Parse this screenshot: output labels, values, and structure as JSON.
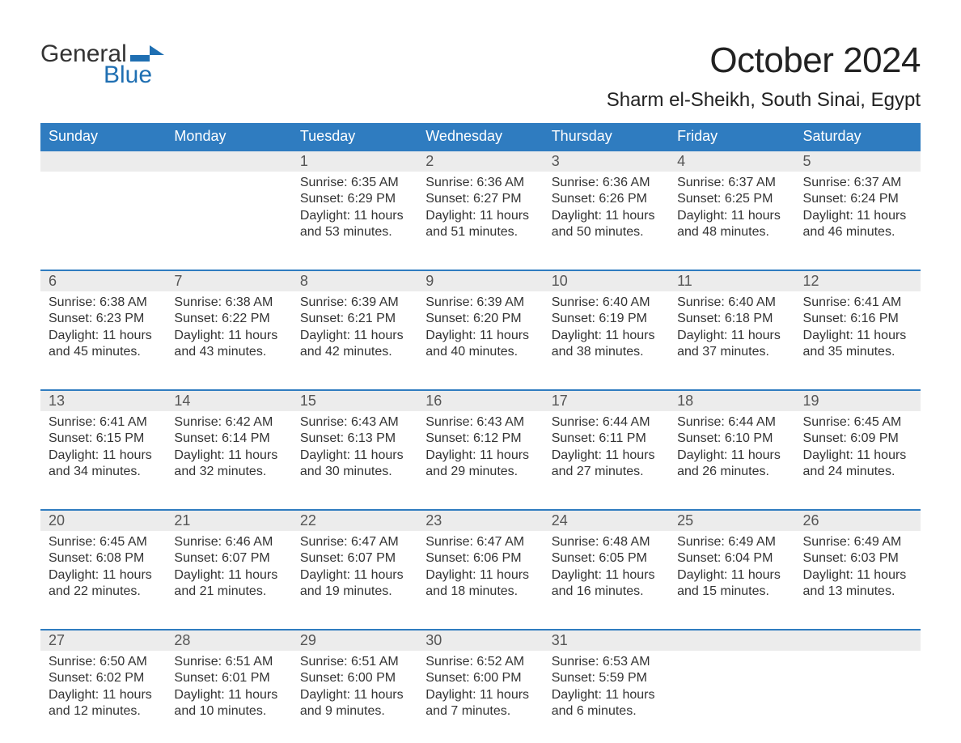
{
  "brand": {
    "word1": "General",
    "word2": "Blue",
    "mark_color": "#1f6fb2",
    "text_color_primary": "#333333",
    "text_color_accent": "#1f6fb2"
  },
  "header": {
    "month_title": "October 2024",
    "location": "Sharm el-Sheikh, South Sinai, Egypt"
  },
  "style": {
    "header_bg": "#2f7cc0",
    "header_fg": "#ffffff",
    "daynum_bg": "#ececec",
    "daynum_fg": "#555555",
    "row_border": "#2f7cc0",
    "body_fg": "#333333",
    "page_bg": "#ffffff",
    "month_title_fontsize": 44,
    "location_fontsize": 24,
    "weekday_fontsize": 18,
    "daynum_fontsize": 18,
    "body_fontsize": 16
  },
  "weekdays": [
    "Sunday",
    "Monday",
    "Tuesday",
    "Wednesday",
    "Thursday",
    "Friday",
    "Saturday"
  ],
  "weeks": [
    [
      {
        "empty": true
      },
      {
        "empty": true
      },
      {
        "num": "1",
        "sunrise": "Sunrise: 6:35 AM",
        "sunset": "Sunset: 6:29 PM",
        "daylight": "Daylight: 11 hours and 53 minutes."
      },
      {
        "num": "2",
        "sunrise": "Sunrise: 6:36 AM",
        "sunset": "Sunset: 6:27 PM",
        "daylight": "Daylight: 11 hours and 51 minutes."
      },
      {
        "num": "3",
        "sunrise": "Sunrise: 6:36 AM",
        "sunset": "Sunset: 6:26 PM",
        "daylight": "Daylight: 11 hours and 50 minutes."
      },
      {
        "num": "4",
        "sunrise": "Sunrise: 6:37 AM",
        "sunset": "Sunset: 6:25 PM",
        "daylight": "Daylight: 11 hours and 48 minutes."
      },
      {
        "num": "5",
        "sunrise": "Sunrise: 6:37 AM",
        "sunset": "Sunset: 6:24 PM",
        "daylight": "Daylight: 11 hours and 46 minutes."
      }
    ],
    [
      {
        "num": "6",
        "sunrise": "Sunrise: 6:38 AM",
        "sunset": "Sunset: 6:23 PM",
        "daylight": "Daylight: 11 hours and 45 minutes."
      },
      {
        "num": "7",
        "sunrise": "Sunrise: 6:38 AM",
        "sunset": "Sunset: 6:22 PM",
        "daylight": "Daylight: 11 hours and 43 minutes."
      },
      {
        "num": "8",
        "sunrise": "Sunrise: 6:39 AM",
        "sunset": "Sunset: 6:21 PM",
        "daylight": "Daylight: 11 hours and 42 minutes."
      },
      {
        "num": "9",
        "sunrise": "Sunrise: 6:39 AM",
        "sunset": "Sunset: 6:20 PM",
        "daylight": "Daylight: 11 hours and 40 minutes."
      },
      {
        "num": "10",
        "sunrise": "Sunrise: 6:40 AM",
        "sunset": "Sunset: 6:19 PM",
        "daylight": "Daylight: 11 hours and 38 minutes."
      },
      {
        "num": "11",
        "sunrise": "Sunrise: 6:40 AM",
        "sunset": "Sunset: 6:18 PM",
        "daylight": "Daylight: 11 hours and 37 minutes."
      },
      {
        "num": "12",
        "sunrise": "Sunrise: 6:41 AM",
        "sunset": "Sunset: 6:16 PM",
        "daylight": "Daylight: 11 hours and 35 minutes."
      }
    ],
    [
      {
        "num": "13",
        "sunrise": "Sunrise: 6:41 AM",
        "sunset": "Sunset: 6:15 PM",
        "daylight": "Daylight: 11 hours and 34 minutes."
      },
      {
        "num": "14",
        "sunrise": "Sunrise: 6:42 AM",
        "sunset": "Sunset: 6:14 PM",
        "daylight": "Daylight: 11 hours and 32 minutes."
      },
      {
        "num": "15",
        "sunrise": "Sunrise: 6:43 AM",
        "sunset": "Sunset: 6:13 PM",
        "daylight": "Daylight: 11 hours and 30 minutes."
      },
      {
        "num": "16",
        "sunrise": "Sunrise: 6:43 AM",
        "sunset": "Sunset: 6:12 PM",
        "daylight": "Daylight: 11 hours and 29 minutes."
      },
      {
        "num": "17",
        "sunrise": "Sunrise: 6:44 AM",
        "sunset": "Sunset: 6:11 PM",
        "daylight": "Daylight: 11 hours and 27 minutes."
      },
      {
        "num": "18",
        "sunrise": "Sunrise: 6:44 AM",
        "sunset": "Sunset: 6:10 PM",
        "daylight": "Daylight: 11 hours and 26 minutes."
      },
      {
        "num": "19",
        "sunrise": "Sunrise: 6:45 AM",
        "sunset": "Sunset: 6:09 PM",
        "daylight": "Daylight: 11 hours and 24 minutes."
      }
    ],
    [
      {
        "num": "20",
        "sunrise": "Sunrise: 6:45 AM",
        "sunset": "Sunset: 6:08 PM",
        "daylight": "Daylight: 11 hours and 22 minutes."
      },
      {
        "num": "21",
        "sunrise": "Sunrise: 6:46 AM",
        "sunset": "Sunset: 6:07 PM",
        "daylight": "Daylight: 11 hours and 21 minutes."
      },
      {
        "num": "22",
        "sunrise": "Sunrise: 6:47 AM",
        "sunset": "Sunset: 6:07 PM",
        "daylight": "Daylight: 11 hours and 19 minutes."
      },
      {
        "num": "23",
        "sunrise": "Sunrise: 6:47 AM",
        "sunset": "Sunset: 6:06 PM",
        "daylight": "Daylight: 11 hours and 18 minutes."
      },
      {
        "num": "24",
        "sunrise": "Sunrise: 6:48 AM",
        "sunset": "Sunset: 6:05 PM",
        "daylight": "Daylight: 11 hours and 16 minutes."
      },
      {
        "num": "25",
        "sunrise": "Sunrise: 6:49 AM",
        "sunset": "Sunset: 6:04 PM",
        "daylight": "Daylight: 11 hours and 15 minutes."
      },
      {
        "num": "26",
        "sunrise": "Sunrise: 6:49 AM",
        "sunset": "Sunset: 6:03 PM",
        "daylight": "Daylight: 11 hours and 13 minutes."
      }
    ],
    [
      {
        "num": "27",
        "sunrise": "Sunrise: 6:50 AM",
        "sunset": "Sunset: 6:02 PM",
        "daylight": "Daylight: 11 hours and 12 minutes."
      },
      {
        "num": "28",
        "sunrise": "Sunrise: 6:51 AM",
        "sunset": "Sunset: 6:01 PM",
        "daylight": "Daylight: 11 hours and 10 minutes."
      },
      {
        "num": "29",
        "sunrise": "Sunrise: 6:51 AM",
        "sunset": "Sunset: 6:00 PM",
        "daylight": "Daylight: 11 hours and 9 minutes."
      },
      {
        "num": "30",
        "sunrise": "Sunrise: 6:52 AM",
        "sunset": "Sunset: 6:00 PM",
        "daylight": "Daylight: 11 hours and 7 minutes."
      },
      {
        "num": "31",
        "sunrise": "Sunrise: 6:53 AM",
        "sunset": "Sunset: 5:59 PM",
        "daylight": "Daylight: 11 hours and 6 minutes."
      },
      {
        "empty": true
      },
      {
        "empty": true
      }
    ]
  ]
}
